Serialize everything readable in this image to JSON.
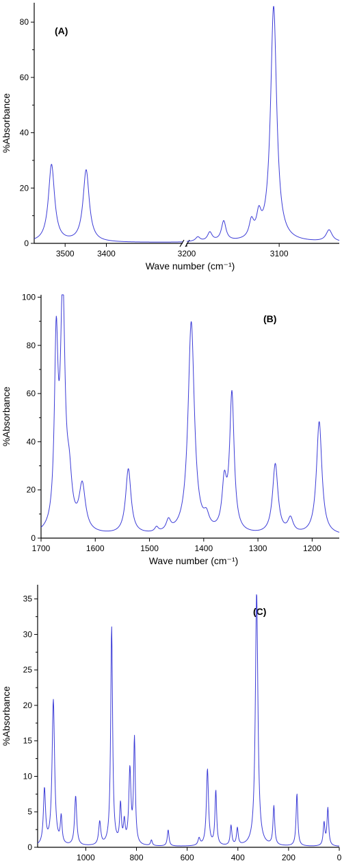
{
  "chart_data": [
    {
      "type": "line",
      "panel_label": "(A)",
      "xlabel": "Wave number (cm⁻¹)",
      "ylabel": "%Absorbance",
      "x_reversed": true,
      "axis_break": true,
      "break_at": 3200,
      "break_segments": [
        [
          3575,
          3215
        ],
        [
          3200,
          3035
        ]
      ],
      "xticks": [
        3500,
        3400,
        3200,
        3100
      ],
      "yticks": [
        0,
        20,
        40,
        60,
        80
      ],
      "ylim": [
        0,
        87
      ],
      "baseline": 0.3,
      "peaks": [
        {
          "x": 3533,
          "y": 28.0,
          "w": 9
        },
        {
          "x": 3449,
          "y": 26.0,
          "w": 9
        },
        {
          "x": 3188,
          "y": 1.6,
          "w": 3
        },
        {
          "x": 3175,
          "y": 3.2,
          "w": 3
        },
        {
          "x": 3160,
          "y": 7.2,
          "w": 3
        },
        {
          "x": 3130,
          "y": 6.0,
          "w": 3
        },
        {
          "x": 3122,
          "y": 7.5,
          "w": 3
        },
        {
          "x": 3106,
          "y": 85.0,
          "w": 4
        },
        {
          "x": 3046,
          "y": 4.2,
          "w": 4
        }
      ]
    },
    {
      "type": "line",
      "panel_label": "(B)",
      "xlabel": "Wave number (cm⁻¹)",
      "ylabel": "%Absorbance",
      "x_reversed": true,
      "xlim": [
        1700,
        1150
      ],
      "xticks": [
        1700,
        1600,
        1500,
        1400,
        1300,
        1200
      ],
      "yticks": [
        0,
        20,
        40,
        60,
        80,
        100
      ],
      "ylim": [
        0,
        101
      ],
      "baseline": 1.0,
      "peaks": [
        {
          "x": 1672,
          "y": 75,
          "w": 4
        },
        {
          "x": 1660,
          "y": 97,
          "w": 5
        },
        {
          "x": 1648,
          "y": 18,
          "w": 6
        },
        {
          "x": 1624,
          "y": 19,
          "w": 7
        },
        {
          "x": 1539,
          "y": 27,
          "w": 6
        },
        {
          "x": 1487,
          "y": 2,
          "w": 4
        },
        {
          "x": 1465,
          "y": 4.5,
          "w": 5
        },
        {
          "x": 1423,
          "y": 88,
          "w": 7
        },
        {
          "x": 1395,
          "y": 5,
          "w": 6
        },
        {
          "x": 1362,
          "y": 19,
          "w": 5
        },
        {
          "x": 1348,
          "y": 57,
          "w": 5
        },
        {
          "x": 1268,
          "y": 29,
          "w": 6
        },
        {
          "x": 1240,
          "y": 6,
          "w": 6
        },
        {
          "x": 1187,
          "y": 47,
          "w": 6
        }
      ]
    },
    {
      "type": "line",
      "panel_label": "(C)",
      "xlabel": "Wave number (cm⁻¹)",
      "ylabel": "%Absorbance",
      "x_reversed": true,
      "xlim": [
        1190,
        0
      ],
      "xticks": [
        1000,
        800,
        600,
        400,
        200,
        0
      ],
      "yticks": [
        0,
        5,
        10,
        15,
        20,
        25,
        30,
        35
      ],
      "ylim": [
        0,
        37
      ],
      "baseline": 0.1,
      "peaks": [
        {
          "x": 1163,
          "y": 7.8,
          "w": 5
        },
        {
          "x": 1128,
          "y": 20.5,
          "w": 6
        },
        {
          "x": 1097,
          "y": 3.8,
          "w": 4
        },
        {
          "x": 1040,
          "y": 7.0,
          "w": 5
        },
        {
          "x": 945,
          "y": 3.3,
          "w": 5
        },
        {
          "x": 898,
          "y": 30.8,
          "w": 4.5
        },
        {
          "x": 863,
          "y": 5.5,
          "w": 4
        },
        {
          "x": 848,
          "y": 3.0,
          "w": 4
        },
        {
          "x": 826,
          "y": 10.5,
          "w": 5
        },
        {
          "x": 808,
          "y": 14.8,
          "w": 4
        },
        {
          "x": 741,
          "y": 0.8,
          "w": 4
        },
        {
          "x": 675,
          "y": 2.3,
          "w": 4
        },
        {
          "x": 553,
          "y": 1.0,
          "w": 5
        },
        {
          "x": 520,
          "y": 10.8,
          "w": 5
        },
        {
          "x": 487,
          "y": 7.7,
          "w": 4
        },
        {
          "x": 427,
          "y": 2.8,
          "w": 4
        },
        {
          "x": 402,
          "y": 2.4,
          "w": 4
        },
        {
          "x": 326,
          "y": 35.8,
          "w": 6
        },
        {
          "x": 258,
          "y": 5.5,
          "w": 4
        },
        {
          "x": 167,
          "y": 7.4,
          "w": 4
        },
        {
          "x": 60,
          "y": 3.2,
          "w": 4
        },
        {
          "x": 45,
          "y": 5.3,
          "w": 4
        }
      ]
    }
  ],
  "colors": {
    "spectrum_line": "#3a3ad6",
    "axis": "#000000",
    "background": "#ffffff"
  }
}
